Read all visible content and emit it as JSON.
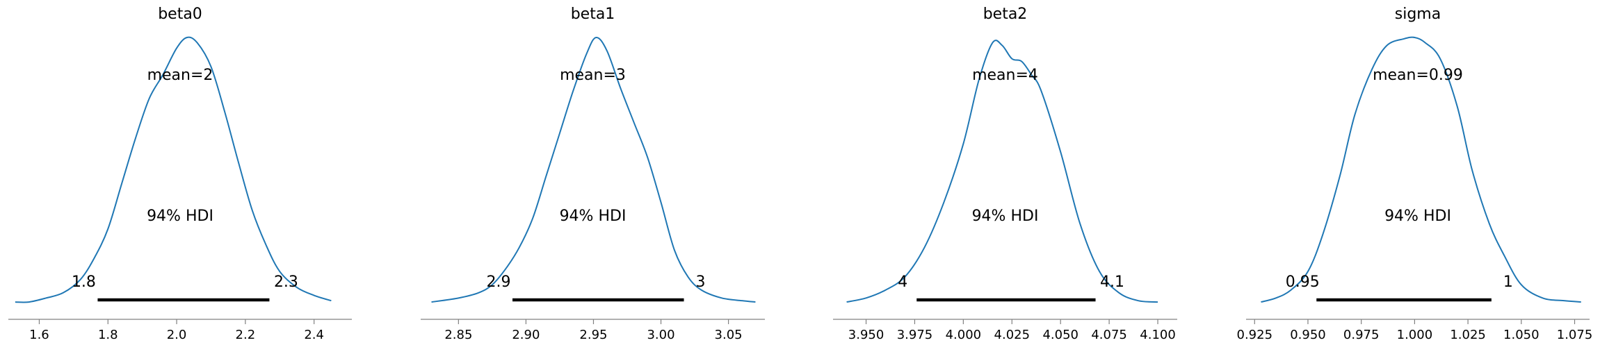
{
  "chart_data": [
    {
      "type": "density",
      "title": "beta0",
      "mean_label": "mean=2",
      "hdi_label": "94% HDI",
      "hdi": [
        1.77,
        2.27
      ],
      "hdi_low_label": "1.8",
      "hdi_high_label": "2.3",
      "xlim": [
        1.51,
        2.51
      ],
      "ylim": [
        0,
        1
      ],
      "xticks": [
        1.6,
        1.8,
        2.0,
        2.2,
        2.4
      ],
      "xtick_labels": [
        "1.6",
        "1.8",
        "2.0",
        "2.2",
        "2.4"
      ],
      "x": [
        1.53,
        1.57,
        1.62,
        1.67,
        1.72,
        1.76,
        1.8,
        1.84,
        1.88,
        1.92,
        1.96,
        2.0,
        2.03,
        2.06,
        2.1,
        2.14,
        2.18,
        2.22,
        2.26,
        2.3,
        2.35,
        2.4,
        2.45
      ],
      "y": [
        0.005,
        0.005,
        0.02,
        0.04,
        0.09,
        0.17,
        0.28,
        0.45,
        0.62,
        0.77,
        0.86,
        0.96,
        1.0,
        0.98,
        0.89,
        0.72,
        0.53,
        0.35,
        0.22,
        0.12,
        0.06,
        0.03,
        0.01
      ]
    },
    {
      "type": "density",
      "title": "beta1",
      "mean_label": "mean=3",
      "hdi_label": "94% HDI",
      "hdi": [
        2.89,
        3.017
      ],
      "hdi_low_label": "2.9",
      "hdi_high_label": "3",
      "xlim": [
        2.822,
        3.077
      ],
      "ylim": [
        0,
        1
      ],
      "xticks": [
        2.85,
        2.9,
        2.95,
        3.0,
        3.05
      ],
      "xtick_labels": [
        "2.85",
        "2.90",
        "2.95",
        "3.00",
        "3.05"
      ],
      "x": [
        2.83,
        2.85,
        2.865,
        2.875,
        2.885,
        2.895,
        2.905,
        2.915,
        2.925,
        2.935,
        2.945,
        2.952,
        2.96,
        2.97,
        2.98,
        2.99,
        3.0,
        3.01,
        3.02,
        3.03,
        3.045,
        3.06,
        3.07
      ],
      "y": [
        0.005,
        0.02,
        0.04,
        0.07,
        0.13,
        0.21,
        0.32,
        0.48,
        0.64,
        0.8,
        0.94,
        1.0,
        0.95,
        0.81,
        0.68,
        0.55,
        0.38,
        0.2,
        0.1,
        0.05,
        0.02,
        0.01,
        0.005
      ]
    },
    {
      "type": "density",
      "title": "beta2",
      "mean_label": "mean=4",
      "hdi_label": "94% HDI",
      "hdi": [
        3.976,
        4.068
      ],
      "hdi_low_label": "4",
      "hdi_high_label": "4.1",
      "xlim": [
        3.933,
        4.11
      ],
      "ylim": [
        0,
        1
      ],
      "xticks": [
        3.95,
        3.975,
        4.0,
        4.025,
        4.05,
        4.075,
        4.1
      ],
      "xtick_labels": [
        "3.950",
        "3.975",
        "4.000",
        "4.025",
        "4.050",
        "4.075",
        "4.100"
      ],
      "x": [
        3.94,
        3.95,
        3.96,
        3.97,
        3.98,
        3.99,
        4.0,
        4.008,
        4.015,
        4.02,
        4.025,
        4.03,
        4.035,
        4.04,
        4.05,
        4.06,
        4.07,
        4.08,
        4.09,
        4.1
      ],
      "y": [
        0.005,
        0.02,
        0.05,
        0.1,
        0.21,
        0.38,
        0.6,
        0.84,
        0.98,
        0.97,
        0.92,
        0.91,
        0.86,
        0.8,
        0.57,
        0.3,
        0.12,
        0.04,
        0.01,
        0.005
      ]
    },
    {
      "type": "density",
      "title": "sigma",
      "mean_label": "mean=0.99",
      "hdi_label": "94% HDI",
      "hdi": [
        0.954,
        1.036
      ],
      "hdi_low_label": "0.95",
      "hdi_high_label": "1",
      "xlim": [
        0.921,
        1.082
      ],
      "ylim": [
        0,
        1
      ],
      "xticks": [
        0.925,
        0.95,
        0.975,
        1.0,
        1.025,
        1.05,
        1.075
      ],
      "xtick_labels": [
        "0.925",
        "0.950",
        "0.975",
        "1.000",
        "1.025",
        "1.050",
        "1.075"
      ],
      "x": [
        0.928,
        0.935,
        0.942,
        0.95,
        0.957,
        0.965,
        0.972,
        0.98,
        0.987,
        0.995,
        1.0,
        1.005,
        1.012,
        1.02,
        1.027,
        1.035,
        1.042,
        1.05,
        1.06,
        1.07,
        1.078
      ],
      "y": [
        0.005,
        0.02,
        0.05,
        0.12,
        0.26,
        0.48,
        0.71,
        0.88,
        0.97,
        0.995,
        1.0,
        0.98,
        0.92,
        0.74,
        0.5,
        0.3,
        0.18,
        0.07,
        0.02,
        0.01,
        0.005
      ]
    }
  ],
  "colors": {
    "line": "#1f77b4",
    "hdi_bar": "#000000",
    "axis": "#808080"
  }
}
